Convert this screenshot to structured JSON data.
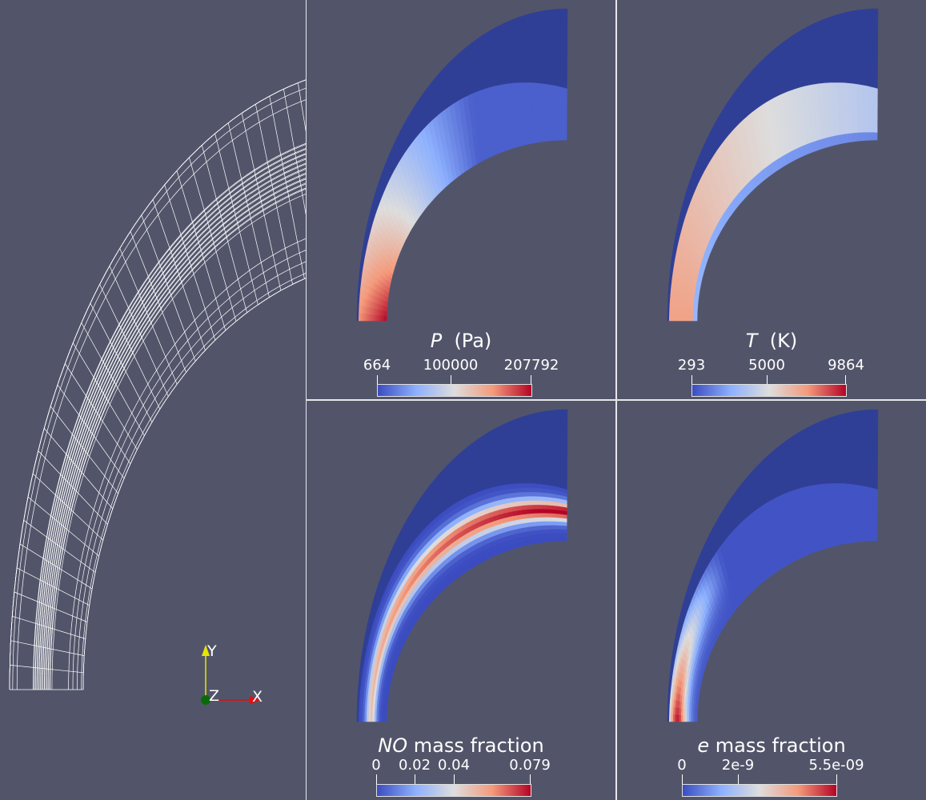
{
  "colors": {
    "background": "#52556a",
    "mesh": "#ffffff",
    "cool_to_warm": [
      "#3b4cc0",
      "#8db0fe",
      "#dddddd",
      "#f49a7b",
      "#b40426"
    ],
    "field_low": "#303f96",
    "axis_x": "#e01010",
    "axis_y": "#e6e600",
    "axis_origin": "#0a6a0a"
  },
  "panels": [
    {
      "id": "pressure",
      "symbol": "P",
      "label_suffix": "  (Pa)",
      "ticks": [
        "664",
        "100000",
        "207792"
      ]
    },
    {
      "id": "temperature",
      "symbol": "T",
      "label_suffix": "  (K)",
      "ticks": [
        "293",
        "5000",
        "9864"
      ]
    },
    {
      "id": "no-mass-fraction",
      "symbol": "NO",
      "label_suffix": " mass fraction",
      "ticks": [
        "0",
        "0.02",
        "0.04",
        "0.079"
      ]
    },
    {
      "id": "e-mass-fraction",
      "symbol": "e",
      "label_suffix": " mass fraction",
      "ticks": [
        "0",
        "2e-9",
        "5.5e-09"
      ]
    }
  ],
  "axes_triad": {
    "x": "X",
    "y": "Y",
    "z": "Z"
  }
}
